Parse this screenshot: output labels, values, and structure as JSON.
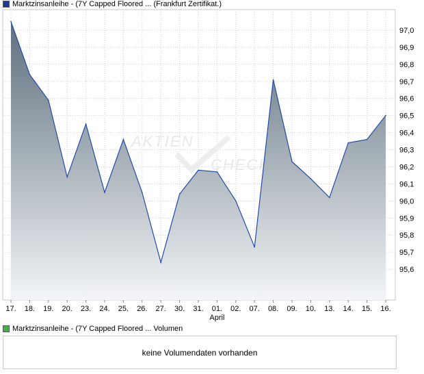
{
  "legend_price": {
    "label": "Marktzinsanleihe - (7Y Capped Floored ... (Frankfurt Zertifikat.)",
    "color": "#1f3a93"
  },
  "legend_volume": {
    "label": "Marktzinsanleihe - (7Y Capped Floored ... Volumen",
    "color": "#4caf50"
  },
  "watermark": {
    "line1": "AKTIEN",
    "line2": "CHECK"
  },
  "volume_message": "keine Volumendaten vorhanden",
  "chart_data": {
    "type": "area",
    "categories": [
      "17.",
      "18.",
      "19.",
      "20.",
      "23.",
      "24.",
      "25.",
      "26.",
      "27.",
      "30.",
      "31.",
      "01.",
      "02.",
      "07.",
      "08.",
      "09.",
      "10.",
      "13.",
      "14.",
      "15.",
      "16."
    ],
    "month_labels": [
      {
        "after_index": 11,
        "label": "April"
      }
    ],
    "series": [
      {
        "values": [
          97.05,
          96.74,
          96.59,
          96.14,
          96.45,
          96.05,
          96.36,
          96.05,
          95.64,
          96.04,
          96.18,
          96.17,
          96.0,
          95.73,
          96.71,
          96.23,
          96.13,
          96.02,
          96.34,
          96.36,
          96.5
        ]
      }
    ],
    "ylim": [
      95.42,
      97.12
    ],
    "yticks": [
      "95,6",
      "95,7",
      "95,8",
      "95,9",
      "96,0",
      "96,1",
      "96,2",
      "96,3",
      "96,4",
      "96,5",
      "96,6",
      "96,7",
      "96,8",
      "96,9",
      "97,0"
    ],
    "ytick_values": [
      95.6,
      95.7,
      95.8,
      95.9,
      96.0,
      96.1,
      96.2,
      96.3,
      96.4,
      96.5,
      96.6,
      96.7,
      96.8,
      96.9,
      97.0
    ],
    "colors": {
      "line": "#1f4aa8",
      "fill_top": "#5e6f7c",
      "fill_bottom": "#f3f5f7",
      "grid": "#d0d0d0"
    },
    "grid": true
  }
}
